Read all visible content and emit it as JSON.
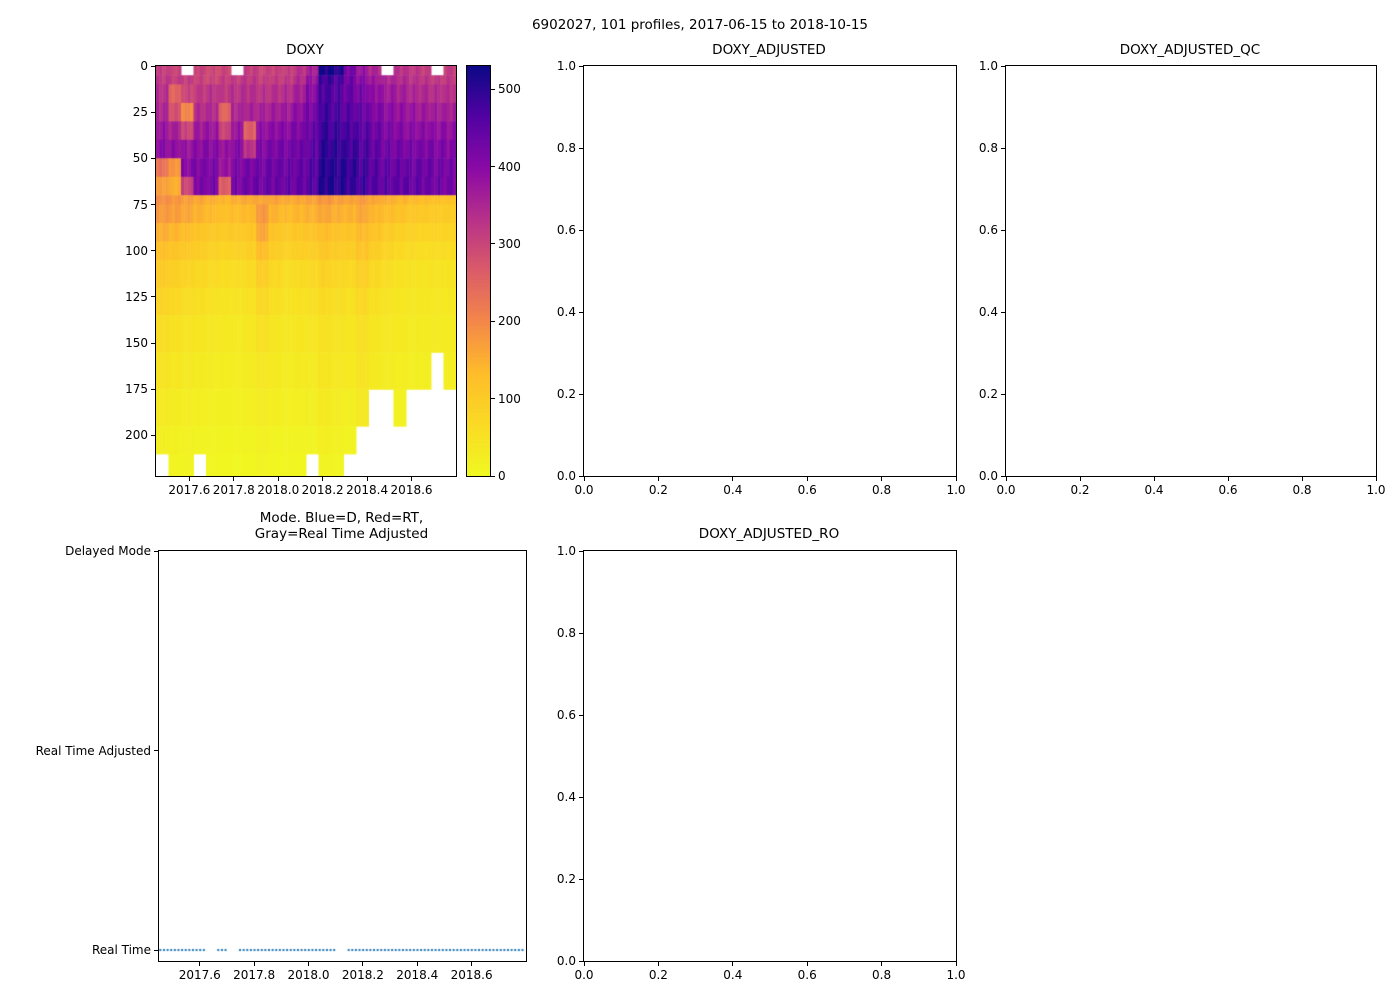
{
  "figure": {
    "title": "6902027, 101 profiles, 2017-06-15 to 2018-10-15"
  },
  "chart_data": [
    {
      "id": "doxy",
      "type": "heatmap",
      "title": "DOXY",
      "xlim": [
        2017.45,
        2018.8
      ],
      "ylim": [
        0,
        222
      ],
      "x_ticks": [
        2017.6,
        2017.8,
        2018.0,
        2018.2,
        2018.4,
        2018.6
      ],
      "x_tick_labels": [
        "2017.6",
        "2017.8",
        "2018.0",
        "2018.2",
        "2018.4",
        "2018.6"
      ],
      "y_ticks": [
        0,
        25,
        50,
        75,
        100,
        125,
        150,
        175,
        200
      ],
      "y_tick_labels": [
        "0",
        "25",
        "50",
        "75",
        "100",
        "125",
        "150",
        "175",
        "200"
      ],
      "y_axis_meaning": "pressure/depth, 0 at surface, increasing downward",
      "colormap": "plasma_r",
      "colorbar": {
        "vmin": 0,
        "vmax": 530,
        "ticks": [
          0,
          100,
          200,
          300,
          400,
          500
        ],
        "tick_labels": [
          "0",
          "100",
          "200",
          "300",
          "400",
          "500"
        ]
      },
      "depth_edges": [
        0,
        5,
        10,
        20,
        30,
        40,
        50,
        60,
        70,
        75,
        85,
        95,
        105,
        120,
        135,
        155,
        175,
        195,
        210,
        222
      ],
      "time_edges_range": [
        2017.45,
        2018.8
      ],
      "values": [
        [
          310,
          300,
          null,
          305,
          295,
          300,
          null,
          310,
          300,
          305,
          310,
          330,
          360,
          520,
          510,
          420,
          380,
          350,
          null,
          330,
          320,
          310,
          null,
          315
        ],
        [
          320,
          310,
          315,
          305,
          300,
          310,
          315,
          320,
          310,
          315,
          320,
          340,
          380,
          480,
          470,
          430,
          400,
          370,
          350,
          340,
          330,
          325,
          320,
          320
        ],
        [
          335,
          250,
          300,
          320,
          330,
          320,
          330,
          335,
          330,
          335,
          340,
          360,
          400,
          470,
          460,
          440,
          420,
          390,
          370,
          360,
          350,
          345,
          340,
          335
        ],
        [
          350,
          280,
          200,
          340,
          345,
          250,
          350,
          355,
          360,
          365,
          370,
          390,
          420,
          480,
          470,
          455,
          440,
          410,
          395,
          385,
          380,
          370,
          365,
          360
        ],
        [
          380,
          360,
          300,
          370,
          375,
          300,
          380,
          260,
          390,
          395,
          400,
          410,
          440,
          490,
          485,
          470,
          455,
          430,
          415,
          405,
          400,
          395,
          390,
          385
        ],
        [
          400,
          390,
          380,
          395,
          400,
          380,
          405,
          330,
          410,
          415,
          420,
          430,
          450,
          500,
          495,
          480,
          465,
          445,
          430,
          425,
          420,
          415,
          410,
          405
        ],
        [
          230,
          180,
          400,
          410,
          415,
          380,
          415,
          420,
          425,
          430,
          435,
          440,
          460,
          505,
          500,
          490,
          475,
          455,
          445,
          440,
          435,
          430,
          425,
          420
        ],
        [
          170,
          150,
          300,
          415,
          420,
          260,
          420,
          425,
          430,
          435,
          440,
          445,
          460,
          505,
          500,
          490,
          480,
          460,
          450,
          445,
          440,
          435,
          430,
          425
        ],
        [
          190,
          180,
          170,
          160,
          150,
          140,
          150,
          155,
          160,
          165,
          155,
          160,
          165,
          180,
          170,
          165,
          175,
          160,
          150,
          140,
          135,
          130,
          125,
          120
        ],
        [
          175,
          170,
          160,
          145,
          135,
          125,
          130,
          135,
          180,
          145,
          135,
          140,
          145,
          160,
          150,
          145,
          160,
          140,
          130,
          120,
          110,
          105,
          100,
          100
        ],
        [
          150,
          140,
          130,
          115,
          105,
          100,
          105,
          110,
          160,
          115,
          105,
          110,
          115,
          130,
          120,
          115,
          135,
          115,
          100,
          90,
          85,
          80,
          80,
          80
        ],
        [
          125,
          115,
          105,
          95,
          85,
          80,
          85,
          90,
          130,
          95,
          85,
          90,
          95,
          110,
          100,
          95,
          115,
          95,
          80,
          70,
          65,
          60,
          60,
          60
        ],
        [
          100,
          90,
          80,
          70,
          65,
          60,
          60,
          65,
          95,
          70,
          60,
          65,
          70,
          85,
          75,
          70,
          90,
          70,
          60,
          50,
          48,
          45,
          45,
          45
        ],
        [
          80,
          70,
          60,
          55,
          50,
          45,
          45,
          50,
          70,
          55,
          48,
          52,
          55,
          65,
          58,
          52,
          70,
          55,
          45,
          40,
          38,
          36,
          36,
          36
        ],
        [
          60,
          52,
          45,
          42,
          38,
          34,
          33,
          38,
          52,
          42,
          36,
          40,
          42,
          52,
          46,
          42,
          55,
          42,
          36,
          32,
          30,
          30,
          30,
          30
        ],
        [
          45,
          38,
          33,
          30,
          28,
          26,
          25,
          28,
          38,
          32,
          27,
          30,
          32,
          42,
          36,
          32,
          45,
          32,
          27,
          25,
          22,
          22,
          null,
          25
        ],
        [
          32,
          28,
          24,
          22,
          20,
          18,
          17,
          20,
          28,
          22,
          19,
          21,
          22,
          32,
          27,
          22,
          35,
          null,
          null,
          16,
          null,
          null,
          null,
          null
        ],
        [
          22,
          18,
          16,
          13,
          12,
          11,
          10,
          12,
          18,
          13,
          11,
          12,
          13,
          22,
          17,
          12,
          null,
          null,
          null,
          null,
          null,
          null,
          null,
          null
        ],
        [
          null,
          12,
          10,
          null,
          7,
          6,
          5,
          7,
          12,
          7,
          6,
          6,
          null,
          12,
          9,
          null,
          null,
          null,
          null,
          null,
          null,
          null,
          null,
          null
        ]
      ]
    },
    {
      "id": "doxy_adjusted",
      "type": "empty",
      "title": "DOXY_ADJUSTED",
      "xlim": [
        0,
        1
      ],
      "ylim": [
        1,
        0
      ],
      "x_ticks": [
        0,
        0.2,
        0.4,
        0.6,
        0.8,
        1
      ],
      "x_tick_labels": [
        "0.0",
        "0.2",
        "0.4",
        "0.6",
        "0.8",
        "1.0"
      ],
      "y_ticks": [
        0,
        0.2,
        0.4,
        0.6,
        0.8,
        1
      ],
      "y_tick_labels": [
        "0.0",
        "0.2",
        "0.4",
        "0.6",
        "0.8",
        "1.0"
      ]
    },
    {
      "id": "doxy_adjusted_qc",
      "type": "empty",
      "title": "DOXY_ADJUSTED_QC",
      "xlim": [
        0,
        1
      ],
      "ylim": [
        1,
        0
      ],
      "x_ticks": [
        0,
        0.2,
        0.4,
        0.6,
        0.8,
        1
      ],
      "x_tick_labels": [
        "0.0",
        "0.2",
        "0.4",
        "0.6",
        "0.8",
        "1.0"
      ],
      "y_ticks": [
        0,
        0.2,
        0.4,
        0.6,
        0.8,
        1
      ],
      "y_tick_labels": [
        "0.0",
        "0.2",
        "0.4",
        "0.6",
        "0.8",
        "1.0"
      ]
    },
    {
      "id": "mode",
      "type": "scatter",
      "title": "Mode. Blue=D, Red=RT,\nGray=Real Time Adjusted",
      "xlim": [
        2017.45,
        2018.8
      ],
      "ylim": [
        2.0,
        -0.055
      ],
      "x_ticks": [
        2017.6,
        2017.8,
        2018.0,
        2018.2,
        2018.4,
        2018.6
      ],
      "x_tick_labels": [
        "2017.6",
        "2017.8",
        "2018.0",
        "2018.2",
        "2018.4",
        "2018.6"
      ],
      "y_ticks": [
        2,
        1,
        0
      ],
      "y_tick_labels": [
        "Delayed Mode",
        "Real Time Adjusted",
        "Real Time"
      ],
      "y_categories": [
        "Real Time",
        "Real Time Adjusted",
        "Delayed Mode"
      ],
      "series": [
        {
          "name": "profile-mode-markers",
          "color": "#1f77b4",
          "y": "Real Time",
          "x_start": 2017.455,
          "x_end": 2018.787,
          "count": 101,
          "gaps": [
            [
              2017.615,
              2017.658
            ],
            [
              2017.7,
              2017.74
            ],
            [
              2018.1,
              2018.14
            ]
          ]
        }
      ]
    },
    {
      "id": "doxy_adjusted_ro",
      "type": "empty",
      "title": "DOXY_ADJUSTED_RO",
      "xlim": [
        0,
        1
      ],
      "ylim": [
        1,
        0
      ],
      "x_ticks": [
        0,
        0.2,
        0.4,
        0.6,
        0.8,
        1
      ],
      "x_tick_labels": [
        "0.0",
        "0.2",
        "0.4",
        "0.6",
        "0.8",
        "1.0"
      ],
      "y_ticks": [
        0,
        0.2,
        0.4,
        0.6,
        0.8,
        1
      ],
      "y_tick_labels": [
        "0.0",
        "0.2",
        "0.4",
        "0.6",
        "0.8",
        "1.0"
      ]
    }
  ]
}
